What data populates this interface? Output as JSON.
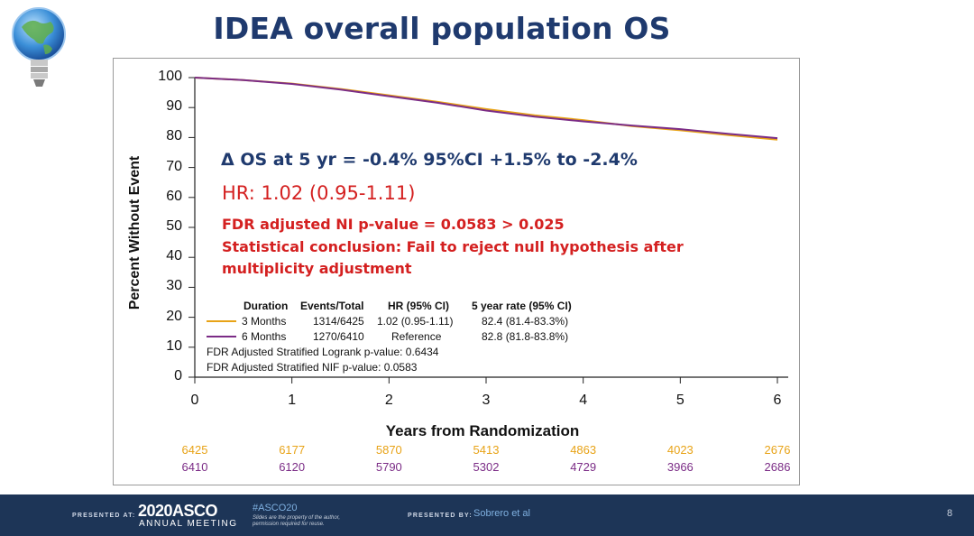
{
  "slide": {
    "title": "IDEA overall population  OS",
    "page_number": "8"
  },
  "annotations": {
    "delta": "Δ OS at 5 yr = -0.4%  95%CI +1.5% to -2.4%",
    "hr": "HR: 1.02 (0.95-1.11)",
    "fdr": "FDR adjusted NI p-value  = 0.0583 > 0.025",
    "conclusion_1": "Statistical conclusion: Fail to reject null hypothesis after",
    "conclusion_2": "multiplicity adjustment"
  },
  "legend": {
    "headers": [
      "Duration",
      "Events/Total",
      "HR (95% CI)",
      "5 year rate (95% CI)"
    ],
    "rows": [
      {
        "duration": "3 Months",
        "events": "1314/6425",
        "hr": "1.02 (0.95-1.11)",
        "rate": "82.4 (81.4-83.3%)",
        "color": "#e8a317"
      },
      {
        "duration": "6 Months",
        "events": "1270/6410",
        "hr": "Reference",
        "rate": "82.8 (81.8-83.8%)",
        "color": "#7b2c86"
      }
    ],
    "note_1": "FDR Adjusted Stratified Logrank p-value: 0.6434",
    "note_2": "FDR Adjusted Stratified NIF p-value: 0.0583"
  },
  "chart_data": {
    "type": "line",
    "title": "IDEA overall population  OS",
    "xlabel": "Years from Randomization",
    "ylabel": "Percent Without Event",
    "xlim": [
      0,
      6
    ],
    "ylim": [
      0,
      100
    ],
    "xticks": [
      "0",
      "1",
      "2",
      "3",
      "4",
      "5",
      "6"
    ],
    "yticks": [
      "0",
      "10",
      "20",
      "30",
      "40",
      "50",
      "60",
      "70",
      "80",
      "90",
      "100"
    ],
    "x": [
      0,
      0.5,
      1,
      1.5,
      2,
      2.5,
      3,
      3.5,
      4,
      4.5,
      5,
      5.5,
      6
    ],
    "series": [
      {
        "name": "3 Months",
        "color": "#e8a317",
        "values": [
          100,
          99.2,
          98.0,
          96.2,
          94.1,
          91.9,
          89.5,
          87.4,
          85.8,
          83.8,
          82.4,
          80.8,
          79.3
        ]
      },
      {
        "name": "6 Months",
        "color": "#7b2c86",
        "values": [
          100,
          99.2,
          97.9,
          96.0,
          93.8,
          91.6,
          89.0,
          87.0,
          85.4,
          84.0,
          82.8,
          81.2,
          79.8
        ]
      }
    ],
    "risk_table": {
      "3 Months": [
        "6425",
        "6177",
        "5870",
        "5413",
        "4863",
        "4023",
        "2676"
      ],
      "6 Months": [
        "6410",
        "6120",
        "5790",
        "5302",
        "4729",
        "3966",
        "2686"
      ]
    }
  },
  "footer": {
    "presented_at": "PRESENTED AT:",
    "year_asco": "2020ASCO",
    "meeting": "ANNUAL MEETING",
    "hashtag": "#ASCO20",
    "note": "Slides are the property of the author, permission required for reuse.",
    "presented_by": "PRESENTED BY:",
    "author": "Sobrero et al"
  }
}
